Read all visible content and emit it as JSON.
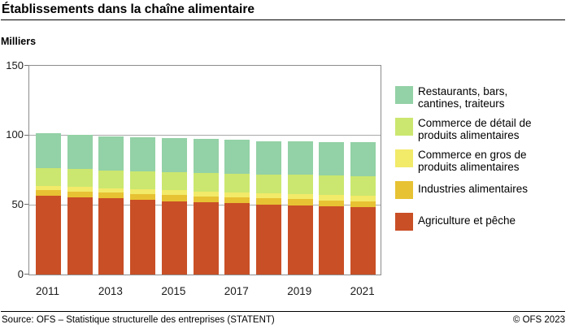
{
  "title": "Établissements dans la chaîne alimentaire",
  "unit_label": "Milliers",
  "footer": {
    "source": "Source: OFS – Statistique structurelle des entreprises (STATENT)",
    "copyright": "© OFS 2023"
  },
  "colors": {
    "restaurants": "#93D1A6",
    "commerce_detail": "#CBE76F",
    "commerce_gros": "#F2EA69",
    "industries": "#E7C233",
    "agriculture": "#C94F26",
    "gridline": "#a9a9a9",
    "plot_border": "#8c8c8c"
  },
  "chart_data": {
    "type": "bar",
    "stacked": true,
    "title": "Établissements dans la chaîne alimentaire",
    "ylabel": "Milliers",
    "ylim": [
      0,
      150
    ],
    "yticks": [
      0,
      50,
      100,
      150
    ],
    "grid": "horizontal",
    "legend_position": "right",
    "x": [
      2011,
      2012,
      2013,
      2014,
      2015,
      2016,
      2017,
      2018,
      2019,
      2020,
      2021
    ],
    "x_tick_labels": [
      "2011",
      "2013",
      "2015",
      "2017",
      "2019",
      "2021"
    ],
    "series": [
      {
        "name": "Agriculture et pêche",
        "color": "#C94F26",
        "values": [
          56.6,
          55.6,
          54.6,
          53.7,
          52.8,
          51.9,
          51.2,
          50.4,
          49.7,
          48.9,
          48.2
        ]
      },
      {
        "name": "Industries alimentaires",
        "color": "#E7C233",
        "values": [
          4.0,
          4.0,
          4.1,
          4.1,
          4.2,
          4.2,
          4.2,
          4.3,
          4.3,
          4.4,
          4.4
        ]
      },
      {
        "name": "Commerce en gros de produits alimentaires",
        "color": "#F2EA69",
        "values": [
          3.1,
          3.2,
          3.3,
          3.4,
          3.5,
          3.6,
          3.7,
          3.8,
          3.9,
          4.0,
          4.1
        ]
      },
      {
        "name": "Commerce de détail de produits alimentaires",
        "color": "#CBE76F",
        "values": [
          12.7,
          12.8,
          12.9,
          13.0,
          13.1,
          13.2,
          13.3,
          13.4,
          13.6,
          13.8,
          14.1
        ]
      },
      {
        "name": "Restaurants, bars, cantines, traiteurs",
        "color": "#93D1A6",
        "values": [
          25.4,
          25.0,
          24.6,
          24.5,
          24.4,
          24.5,
          24.4,
          24.1,
          24.3,
          23.8,
          24.6
        ]
      }
    ],
    "legend": [
      {
        "lines": [
          "Restaurants, bars,",
          "cantines, traiteurs"
        ],
        "color": "#93D1A6"
      },
      {
        "lines": [
          "Commerce de détail de",
          "produits alimentaires"
        ],
        "color": "#CBE76F"
      },
      {
        "lines": [
          "Commerce en gros de",
          "produits alimentaires"
        ],
        "color": "#F2EA69"
      },
      {
        "lines": [
          "Industries alimentaires"
        ],
        "color": "#E7C233"
      },
      {
        "lines": [
          "Agriculture et pêche"
        ],
        "color": "#C94F26"
      }
    ]
  }
}
